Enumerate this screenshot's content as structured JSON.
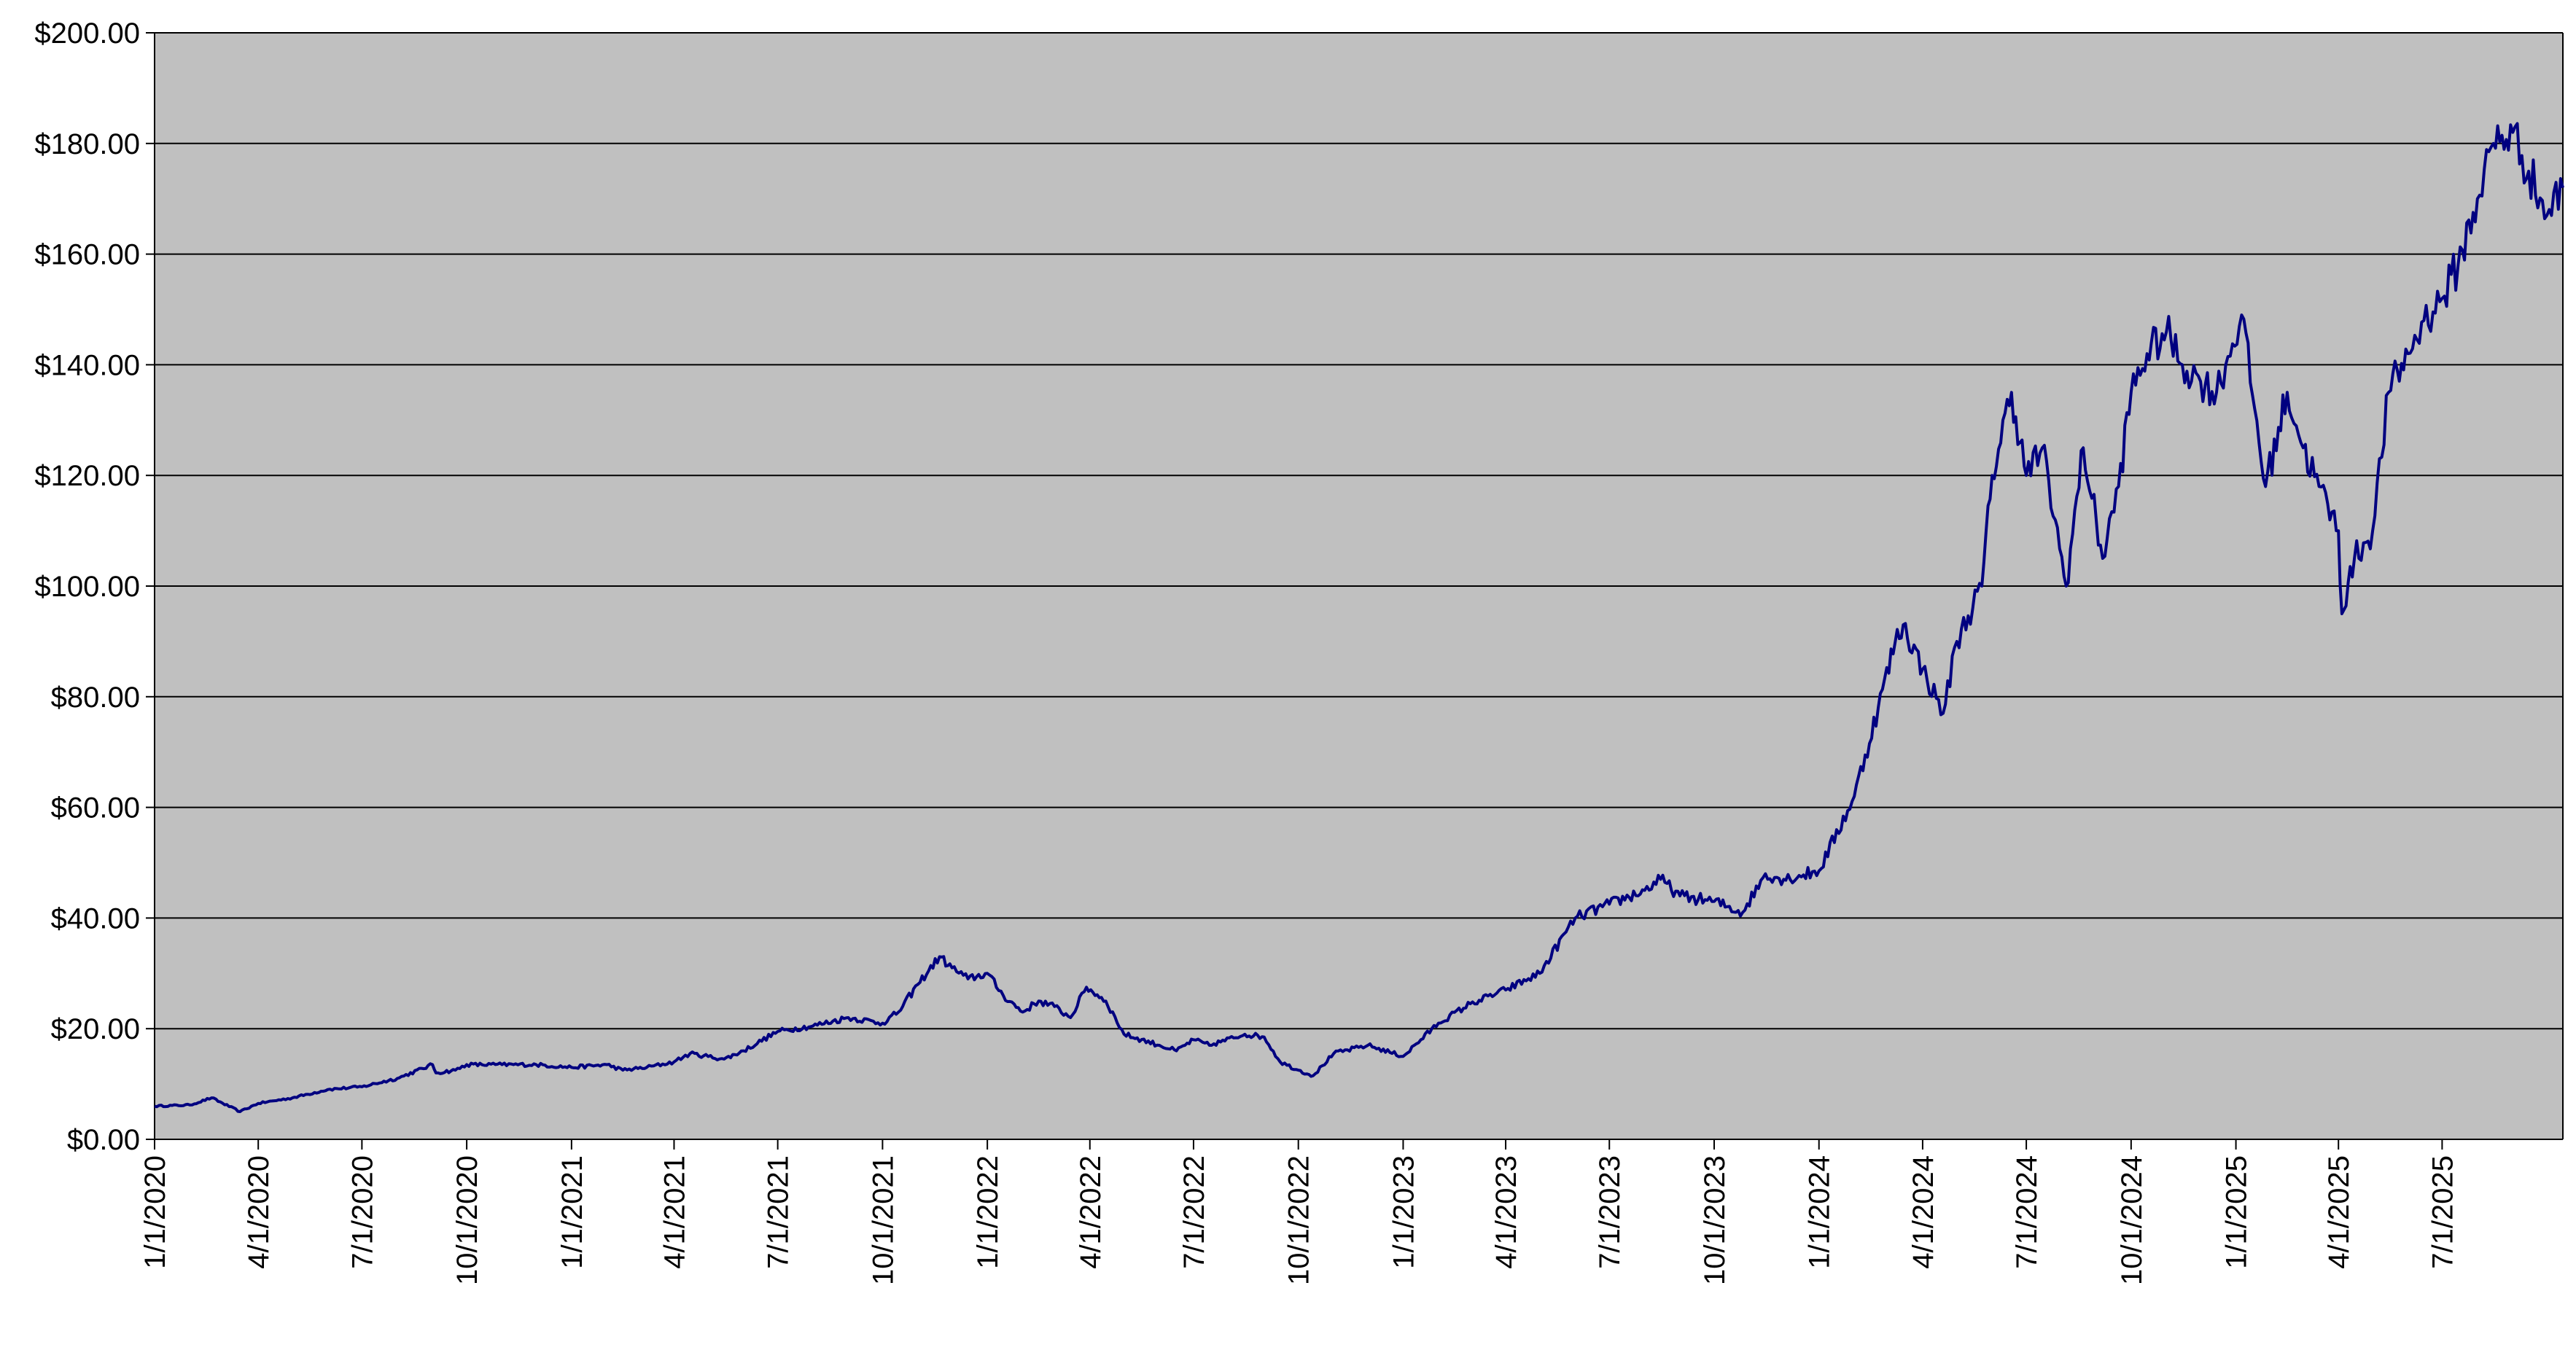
{
  "chart_data": {
    "type": "line",
    "title": "",
    "xlabel": "",
    "ylabel": "",
    "ylim": [
      0,
      200
    ],
    "xlim": [
      "2020-01-01",
      "2025-10-15"
    ],
    "grid": true,
    "legend": "none",
    "y_ticks": [
      "$0.00",
      "$20.00",
      "$40.00",
      "$60.00",
      "$80.00",
      "$100.00",
      "$120.00",
      "$140.00",
      "$160.00",
      "$180.00",
      "$200.00"
    ],
    "y_tick_values": [
      0,
      20,
      40,
      60,
      80,
      100,
      120,
      140,
      160,
      180,
      200
    ],
    "x_ticks": [
      "1/1/2020",
      "4/1/2020",
      "7/1/2020",
      "10/1/2020",
      "1/1/2021",
      "4/1/2021",
      "7/1/2021",
      "10/1/2021",
      "1/1/2022",
      "4/1/2022",
      "7/1/2022",
      "10/1/2022",
      "1/1/2023",
      "4/1/2023",
      "7/1/2023",
      "10/1/2023",
      "1/1/2024",
      "4/1/2024",
      "7/1/2024",
      "10/1/2024",
      "1/1/2025",
      "4/1/2025",
      "7/1/2025"
    ],
    "x_tick_dates": [
      "2020-01-01",
      "2020-04-01",
      "2020-07-01",
      "2020-10-01",
      "2021-01-01",
      "2021-04-01",
      "2021-07-01",
      "2021-10-01",
      "2022-01-01",
      "2022-04-01",
      "2022-07-01",
      "2022-10-01",
      "2023-01-01",
      "2023-04-01",
      "2023-07-01",
      "2023-10-01",
      "2024-01-01",
      "2024-04-01",
      "2024-07-01",
      "2024-10-01",
      "2025-01-01",
      "2025-04-01",
      "2025-07-01"
    ],
    "colors": {
      "plot_background": "#c0c0c0",
      "line": "#000080",
      "grid": "#000000"
    },
    "series": [
      {
        "x": [
          "2020-01-01",
          "2020-02-01",
          "2020-02-20",
          "2020-03-16",
          "2020-04-01",
          "2020-05-01",
          "2020-06-01",
          "2020-07-01",
          "2020-08-01",
          "2020-09-01",
          "2020-09-04",
          "2020-09-21",
          "2020-10-01",
          "2020-11-01",
          "2020-12-01",
          "2021-01-01",
          "2021-02-01",
          "2021-02-15",
          "2021-03-08",
          "2021-04-01",
          "2021-04-15",
          "2021-05-15",
          "2021-06-01",
          "2021-07-01",
          "2021-08-01",
          "2021-09-01",
          "2021-10-01",
          "2021-10-15",
          "2021-11-01",
          "2021-11-20",
          "2021-12-01",
          "2021-12-15",
          "2022-01-01",
          "2022-01-15",
          "2022-02-01",
          "2022-02-15",
          "2022-03-01",
          "2022-03-15",
          "2022-03-29",
          "2022-04-15",
          "2022-05-01",
          "2022-06-01",
          "2022-06-16",
          "2022-07-01",
          "2022-07-15",
          "2022-08-15",
          "2022-09-01",
          "2022-09-15",
          "2022-10-01",
          "2022-10-14",
          "2022-11-01",
          "2022-12-01",
          "2023-01-01",
          "2023-02-01",
          "2023-03-01",
          "2023-04-01",
          "2023-05-01",
          "2023-05-24",
          "2023-06-01",
          "2023-07-01",
          "2023-08-01",
          "2023-08-15",
          "2023-09-01",
          "2023-10-01",
          "2023-10-26",
          "2023-11-15",
          "2023-12-01",
          "2024-01-01",
          "2024-02-01",
          "2024-02-22",
          "2024-03-08",
          "2024-03-15",
          "2024-04-01",
          "2024-04-19",
          "2024-05-01",
          "2024-05-23",
          "2024-06-01",
          "2024-06-18",
          "2024-07-01",
          "2024-07-15",
          "2024-08-05",
          "2024-08-20",
          "2024-09-06",
          "2024-09-20",
          "2024-10-01",
          "2024-10-15",
          "2024-11-01",
          "2024-11-15",
          "2024-12-01",
          "2024-12-15",
          "2025-01-06",
          "2025-01-27",
          "2025-02-15",
          "2025-03-01",
          "2025-03-15",
          "2025-04-01",
          "2025-04-04",
          "2025-04-15",
          "2025-05-01",
          "2025-05-15",
          "2025-06-01",
          "2025-06-15",
          "2025-07-01",
          "2025-07-15",
          "2025-08-01",
          "2025-08-15",
          "2025-09-01",
          "2025-09-15",
          "2025-10-01",
          "2025-10-15"
        ],
        "y": [
          6.0,
          6.2,
          7.5,
          5.0,
          6.5,
          7.5,
          9.0,
          9.5,
          11.0,
          13.5,
          12.0,
          12.5,
          13.5,
          13.5,
          13.5,
          13.0,
          13.5,
          12.5,
          13.0,
          14.0,
          15.5,
          14.5,
          16.0,
          19.5,
          20.5,
          22.0,
          21.0,
          23.0,
          28.0,
          33.0,
          31.0,
          29.0,
          30.0,
          26.0,
          23.0,
          25.0,
          24.0,
          22.0,
          27.5,
          25.0,
          19.0,
          17.0,
          16.0,
          18.0,
          17.0,
          19.0,
          18.5,
          14.0,
          12.5,
          11.5,
          15.5,
          17.0,
          15.0,
          21.0,
          24.5,
          27.0,
          30.0,
          37.5,
          40.0,
          42.5,
          45.0,
          47.0,
          44.0,
          43.0,
          41.0,
          48.0,
          47.0,
          48.5,
          62.0,
          78.0,
          90.0,
          93.0,
          85.0,
          77.0,
          90.0,
          100.0,
          120.0,
          135.0,
          120.0,
          125.0,
          100.0,
          125.0,
          105.0,
          118.0,
          135.0,
          142.0,
          146.0,
          140.0,
          137.0,
          135.0,
          149.0,
          118.0,
          135.0,
          125.0,
          118.0,
          110.0,
          95.0,
          105.0,
          110.0,
          135.0,
          142.0,
          148.0,
          152.0,
          158.0,
          170.0,
          180.0,
          182.0,
          175.0,
          167.0,
          172.0
        ]
      }
    ]
  }
}
